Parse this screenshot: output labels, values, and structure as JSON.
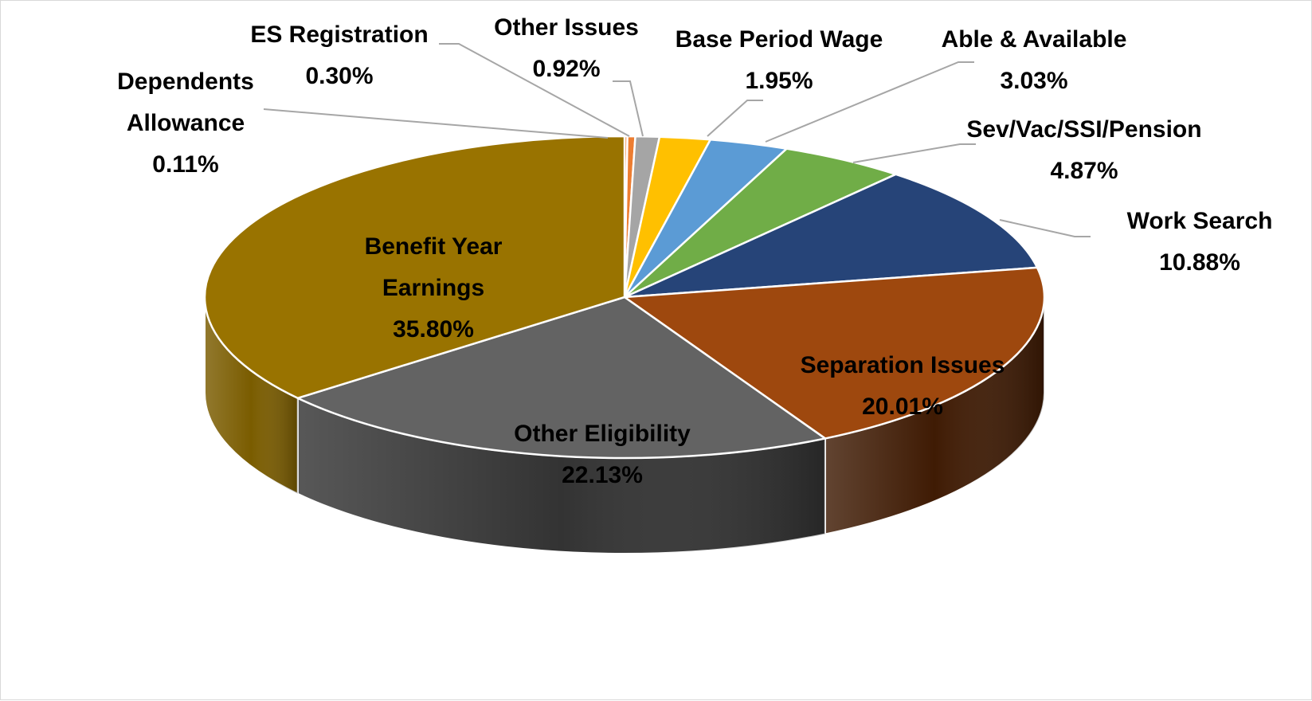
{
  "chart_data": {
    "type": "pie",
    "style": "3d-exploded-none",
    "title": "",
    "start_angle_deg": 90,
    "direction": "clockwise",
    "slices": [
      {
        "name": "Dependents Allowance",
        "label_lines": [
          "Dependents",
          "Allowance"
        ],
        "value": 0.11,
        "value_label": "0.11%",
        "color": "#ed7d31",
        "side_color": "#a0521a"
      },
      {
        "name": "ES Registration",
        "label_lines": [
          "ES Registration"
        ],
        "value": 0.3,
        "value_label": "0.30%",
        "color": "#ed7d31",
        "side_color": "#a0521a"
      },
      {
        "name": "Other Issues",
        "label_lines": [
          "Other Issues"
        ],
        "value": 0.92,
        "value_label": "0.92%",
        "color": "#a5a5a5",
        "side_color": "#6e6e6e"
      },
      {
        "name": "Base Period Wage",
        "label_lines": [
          "Base Period Wage"
        ],
        "value": 1.95,
        "value_label": "1.95%",
        "color": "#ffc000",
        "side_color": "#a67c00"
      },
      {
        "name": "Able & Available",
        "label_lines": [
          "Able & Available"
        ],
        "value": 3.03,
        "value_label": "3.03%",
        "color": "#5b9bd5",
        "side_color": "#3a6a96"
      },
      {
        "name": "Sev/Vac/SSI/Pension",
        "label_lines": [
          "Sev/Vac/SSI/Pension"
        ],
        "value": 4.87,
        "value_label": "4.87%",
        "color": "#70ad47",
        "side_color": "#4a7a2c"
      },
      {
        "name": "Work Search",
        "label_lines": [
          "Work Search"
        ],
        "value": 10.88,
        "value_label": "10.88%",
        "color": "#264478",
        "side_color": "#16294a"
      },
      {
        "name": "Separation Issues",
        "label_lines": [
          "Separation Issues"
        ],
        "value": 20.01,
        "value_label": "20.01%",
        "color": "#9e480e",
        "side_color": "#3f1b04"
      },
      {
        "name": "Other Eligibility",
        "label_lines": [
          "Other Eligibility"
        ],
        "value": 22.13,
        "value_label": "22.13%",
        "color": "#636363",
        "side_color": "#333333"
      },
      {
        "name": "Benefit Year Earnings",
        "label_lines": [
          "Benefit Year",
          "Earnings"
        ],
        "value": 35.8,
        "value_label": "35.80%",
        "color": "#997300",
        "side_color": "#7a5c00"
      }
    ],
    "legend": "none",
    "data_labels": "outside for small slices, inside for large slices"
  }
}
